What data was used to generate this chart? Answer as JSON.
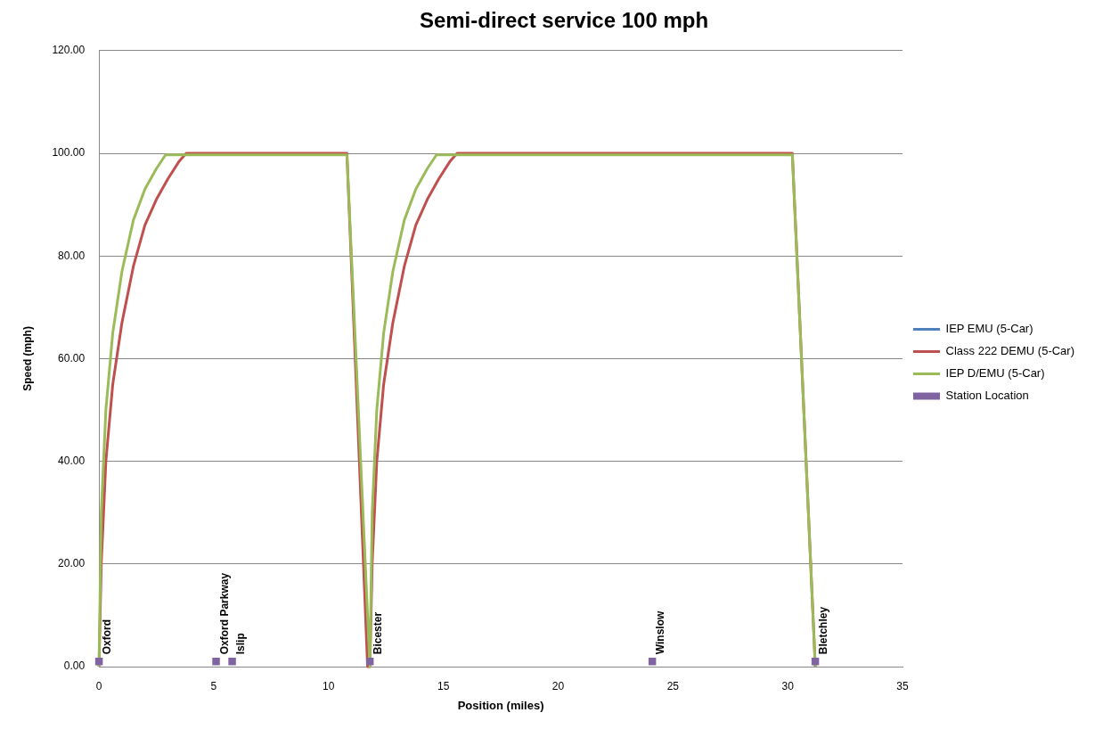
{
  "chart_data": {
    "type": "line",
    "title": "Semi-direct service 100 mph",
    "xlabel": "Position (miles)",
    "ylabel": "Speed (mph)",
    "xlim": [
      0,
      35
    ],
    "xticks": [
      0,
      5,
      10,
      15,
      20,
      25,
      30,
      35
    ],
    "ylim": [
      0,
      120
    ],
    "yticks": [
      {
        "value": 0,
        "label": "0.00"
      },
      {
        "value": 20,
        "label": "20.00"
      },
      {
        "value": 40,
        "label": "40.00"
      },
      {
        "value": 60,
        "label": "60.00"
      },
      {
        "value": 80,
        "label": "80.00"
      },
      {
        "value": 100,
        "label": "100.00"
      },
      {
        "value": 120,
        "label": "120.00"
      }
    ],
    "grid": "y",
    "legend": "right",
    "marker": "none",
    "line_style": "solid",
    "series": [
      {
        "name": "IEP EMU (5-Car)",
        "color": "#4f81bd",
        "type": "line"
      },
      {
        "name": "Class 222 DEMU (5-Car)",
        "color": "#c0504d",
        "type": "line",
        "x": [
          0,
          0.1,
          0.3,
          0.6,
          1,
          1.5,
          2,
          2.5,
          3,
          3.5,
          3.8,
          10.8,
          11.7,
          11.8,
          11.9,
          12.1,
          12.4,
          12.8,
          13.3,
          13.8,
          14.3,
          14.8,
          15.3,
          15.6,
          30.2,
          31.2
        ],
        "values": [
          0,
          20,
          40,
          55,
          67,
          78,
          86,
          91,
          95,
          98.5,
          100,
          100,
          0,
          0,
          20,
          40,
          55,
          67,
          78,
          86,
          91,
          95,
          98.5,
          100,
          100,
          0
        ]
      },
      {
        "name": "IEP D/EMU (5-Car)",
        "color": "#9bbb59",
        "type": "line",
        "x": [
          0,
          0.1,
          0.3,
          0.6,
          1,
          1.5,
          2,
          2.5,
          2.9,
          10.8,
          11.8,
          11.9,
          12.1,
          12.4,
          12.8,
          13.3,
          13.8,
          14.3,
          14.7,
          30.2,
          31.2
        ],
        "values": [
          0,
          30,
          50,
          65,
          77,
          87,
          93,
          97,
          99.7,
          99.7,
          0,
          30,
          50,
          65,
          77,
          87,
          93,
          97,
          99.7,
          99.7,
          0
        ]
      },
      {
        "name": "Station Location",
        "color": "#8064a2",
        "type": "scatter",
        "marker": "square",
        "x": [
          0,
          5.1,
          5.8,
          11.8,
          24.1,
          31.2
        ],
        "values": [
          1,
          1,
          1,
          1,
          1,
          1
        ],
        "value_labels": [
          "Oxford",
          "Oxford Parkway",
          "Islip",
          "Bicester",
          "Winslow",
          "Bletchley"
        ]
      }
    ]
  }
}
